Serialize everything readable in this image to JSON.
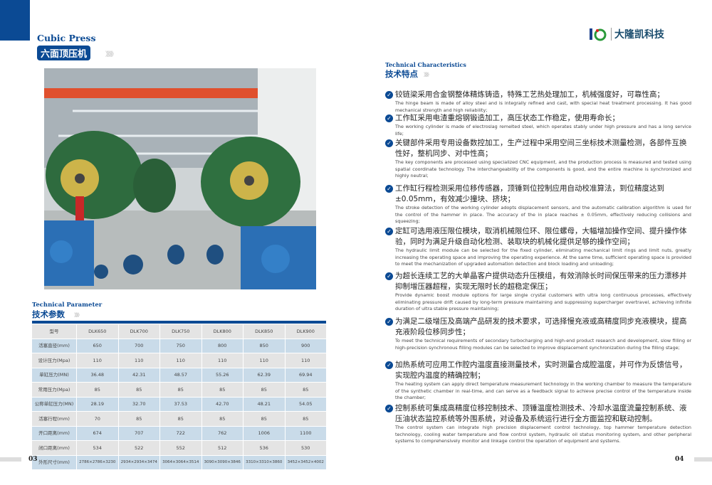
{
  "left_page": {
    "title_en": "Cubic Press",
    "title_cn": "六面顶压机",
    "arrows": "》》》》",
    "param_title_en": "Technical Parameter",
    "param_title_cn": "技术参数",
    "table": {
      "header": [
        "型号",
        "DLK650",
        "DLK700",
        "DLK750",
        "DLK800",
        "DLK850",
        "DLK900"
      ],
      "rows": [
        {
          "label": "活塞直径(mm)",
          "values": [
            "650",
            "700",
            "750",
            "800",
            "850",
            "900"
          ]
        },
        {
          "label": "设计压力(Mpa)",
          "values": [
            "110",
            "110",
            "110",
            "110",
            "110",
            "110"
          ]
        },
        {
          "label": "单缸压力(MN)",
          "values": [
            "36.48",
            "42.31",
            "48.57",
            "55.26",
            "62.39",
            "69.94"
          ]
        },
        {
          "label": "常用压力(Mpa)",
          "values": [
            "85",
            "85",
            "85",
            "85",
            "85",
            "85"
          ]
        },
        {
          "label": "公称单缸压力(MN)",
          "values": [
            "28.19",
            "32.70",
            "37.53",
            "42.70",
            "48.21",
            "54.05"
          ]
        },
        {
          "label": "活塞行程(mm)",
          "values": [
            "70",
            "85",
            "85",
            "85",
            "85",
            "85"
          ]
        },
        {
          "label": "开口距离(mm)",
          "values": [
            "674",
            "707",
            "722",
            "762",
            "1006",
            "1100"
          ]
        },
        {
          "label": "闭口距离(mm)",
          "values": [
            "534",
            "522",
            "552",
            "512",
            "536",
            "530"
          ]
        },
        {
          "label": "外形尺寸(mm)",
          "values": [
            "2786×2786×3230",
            "2934×2934×3474",
            "3064×3064×3514",
            "3090×3090×3846",
            "3310×3310×3860",
            "3452×3452×4002"
          ]
        }
      ]
    },
    "page_number": "03"
  },
  "right_page": {
    "logo_text": "大隆凯科技",
    "char_title_en": "Technical Characteristics",
    "char_title_cn": "技术特点",
    "features": [
      {
        "cn": "铰链梁采用合金钢整体精炼铸造，特殊工艺热处理加工，机械强度好，可靠性高；",
        "en": "The hinge beam is made of alloy steel and is integrally refined and cast, with special heat treatment processing. It has good mechanical strength and high reliability;"
      },
      {
        "cn": "工作缸采用电渣重熔钢锻造加工，高压状态工作稳定，使用寿命长；",
        "en": "The working cylinder is made of electroslag remelted steel, which operates stably under high pressure and has a long service life;"
      },
      {
        "cn": "关键部件采用专用设备数控加工，生产过程中采用空间三坐标技术测量检测，各部件互换性好，整机同步、对中性高；",
        "en": "The key components are processed using specialized CNC equipment, and the production process is measured and tested using spatial coordinate technology. The interchangeability of the components is good, and the entire machine is synchronized and highly neutral;"
      },
      {
        "cn": "工作缸行程检测采用位移传感器，顶锤到位控制应用自动校准算法，到位精度达到±0.05mm，有效减少撞块、挤块；",
        "en": "The stroke detection of the working cylinder adopts displacement sensors, and the automatic calibration algorithm is used for the control of the hammer in place. The accuracy of the in place reaches ± 0.05mm, effectively reducing collisions and squeezing;"
      },
      {
        "cn": "定缸可选用液压限位模块，取消机械限位环、限位螺母，大幅增加操作空间、提升操作体验，同时为满足升级自动化检测、装取块的机械化提供足够的操作空间；",
        "en": "The hydraulic limit module can be selected for the fixed cylinder, eliminating mechanical limit rings and limit nuts, greatly increasing the operating space and improving the operating experience. At the same time, sufficient operating space is provided to meet the mechanization of upgraded automation detection and block loading and unloading;"
      },
      {
        "cn": "为超长连续工艺的大单晶客户提供动态升压模组，有效消除长时间保压带来的压力漂移并抑制增压器超程，实现无限时长的超稳定保压；",
        "en": "Provide dynamic boost module options for large single crystal customers with ultra long continuous processes, effectively eliminating pressure drift caused by long-term pressure maintaining and suppressing supercharger overtravel, achieving infinite duration of ultra stable pressure maintaining;"
      },
      {
        "cn": "为满足二级增压及高端产品研发的技术要求，可选择慢充液或高精度同步充液模块，提高充液阶段位移同步性；",
        "en": "To meet the technical requirements of secondary turbocharging and high-end product research and development, slow filling or high-precision synchronous filling modules can be selected to improve displacement synchronization during the filling stage;"
      },
      {
        "cn": "加热系统可应用工作腔内温度直接测量技术，实时测量合成腔温度，并可作为反馈信号，实现腔内温度的精确控制；",
        "en": "The heating system can apply direct temperature measurement technology in the working chamber to measure the temperature of the synthetic chamber in real-time, and can serve as a feedback signal to achieve precise control of the temperature inside the chamber;"
      },
      {
        "cn": "控制系统可集成高精度位移控制技术、顶锤温度检测技术、冷却水温度流量控制系统、液压油状态监控系统等外围系统，对设备及系统运行进行全方面监控和联动控制。",
        "en": "The control system can integrate high precision displacement control technology, top hammer temperature detection technology, cooling water temperature and flow control system, hydraulic oil status monitoring system, and other peripheral systems to comprehensively monitor and linkage control the operation of equipment and systems."
      }
    ],
    "page_number": "04"
  },
  "colors": {
    "brand_blue": "#0b4a94",
    "row_gray": "#e4e4e4",
    "row_blue": "#c9dbe9"
  }
}
